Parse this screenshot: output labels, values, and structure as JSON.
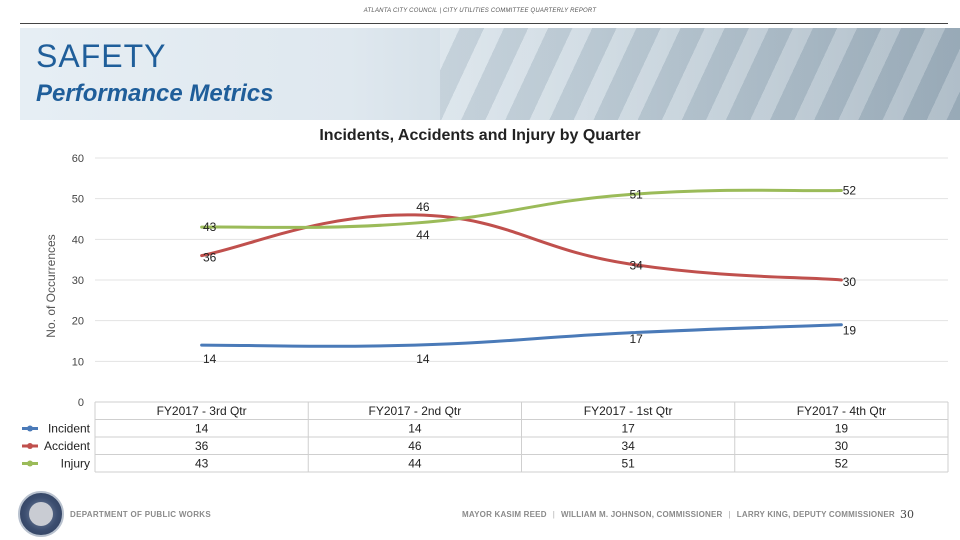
{
  "header": {
    "running_title": "ATLANTA CITY COUNCIL  |  CITY UTILITIES COMMITTEE QUARTERLY REPORT",
    "title": "SAFETY",
    "subtitle": "Performance Metrics"
  },
  "chart_data": {
    "type": "line",
    "title": "Incidents, Accidents and Injury by Quarter",
    "ylabel": "No. of Occurrences",
    "xlabel": "",
    "ylim": [
      0,
      60
    ],
    "yticks": [
      0,
      10,
      20,
      30,
      40,
      50,
      60
    ],
    "categories": [
      "FY2017 - 3rd Qtr",
      "FY2017 - 2nd Qtr",
      "FY2017 - 1st Qtr",
      "FY2017 - 4th Qtr"
    ],
    "series": [
      {
        "name": "Incident",
        "color": "#4a7ab8",
        "values": [
          14,
          14,
          17,
          19
        ]
      },
      {
        "name": "Accident",
        "color": "#c0504d",
        "values": [
          36,
          46,
          34,
          30
        ]
      },
      {
        "name": "Injury",
        "color": "#9bbb59",
        "values": [
          43,
          44,
          51,
          52
        ]
      }
    ],
    "grid": true,
    "legend": "data-table-left"
  },
  "footer": {
    "department": "DEPARTMENT OF PUBLIC WORKS",
    "mayor": "MAYOR KASIM REED",
    "commissioner": "WILLIAM M. JOHNSON, COMMISSIONER",
    "deputy": "LARRY KING, DEPUTY COMMISSIONER",
    "separator": "|",
    "page_number": "30"
  }
}
